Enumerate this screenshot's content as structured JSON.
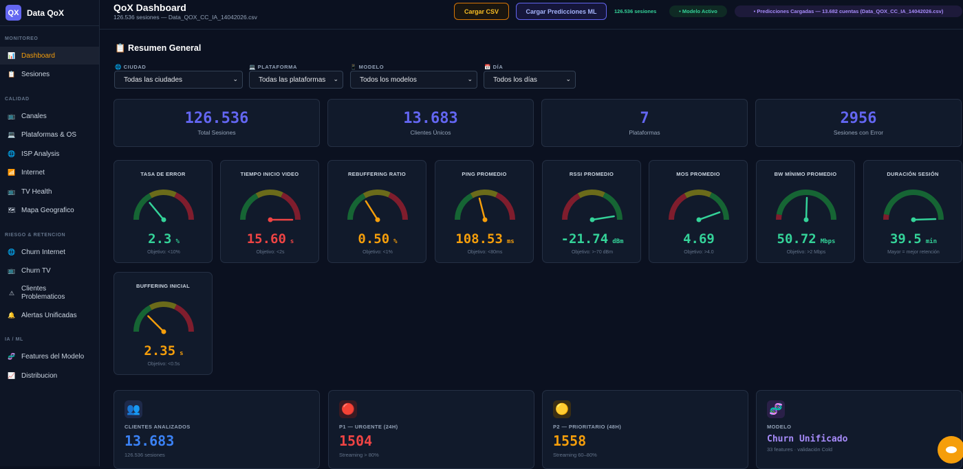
{
  "sidebar": {
    "logo": "QX",
    "brand": "Data QoX",
    "sections": {
      "monitoreo": "MONITOREO",
      "calidad": "CALIDAD",
      "riesgo": "RIESGO & RETENCION",
      "ia": "IA / ML"
    },
    "items": [
      {
        "label": "Dashboard",
        "icon": "📊"
      },
      {
        "label": "Sesiones",
        "icon": "📋"
      },
      {
        "label": "Canales",
        "icon": "📺"
      },
      {
        "label": "Plataformas & OS",
        "icon": "💻"
      },
      {
        "label": "ISP Analysis",
        "icon": "🌐"
      },
      {
        "label": "Internet",
        "icon": "📶"
      },
      {
        "label": "TV Health",
        "icon": "📺"
      },
      {
        "label": "Mapa Geografico",
        "icon": "🗺"
      },
      {
        "label": "Churn Internet",
        "icon": "🌐"
      },
      {
        "label": "Churn TV",
        "icon": "📺"
      },
      {
        "label": "Clientes Problematicos",
        "icon": "⚠"
      },
      {
        "label": "Alertas Unificadas",
        "icon": "🔔"
      },
      {
        "label": "Features del Modelo",
        "icon": "🧬"
      },
      {
        "label": "Distribucion",
        "icon": "📈"
      }
    ]
  },
  "header": {
    "title": "QoX Dashboard",
    "subtitle": "126.536 sesiones — Data_QOX_CC_IA_14042026.csv",
    "btn_csv": "Cargar CSV",
    "btn_ml": "Cargar Predicciones ML",
    "sessions": "126.536 sesiones",
    "model_status": "• Modelo Activo",
    "predictions": "• Predicciones Cargadas — 13.682 cuentas (Data_QOX_CC_IA_14042026.csv)"
  },
  "summary": {
    "title": "📋 Resumen General"
  },
  "filters": [
    {
      "label": "CIUDAD",
      "icon": "🌐",
      "value": "Todas las ciudades"
    },
    {
      "label": "PLATAFORMA",
      "icon": "💻",
      "value": "Todas las plataformas"
    },
    {
      "label": "MODELO",
      "icon": "📱",
      "value": "Todos los modelos"
    },
    {
      "label": "DÍA",
      "icon": "📅",
      "value": "Todos los días"
    }
  ],
  "kpis": [
    {
      "value": "126.536",
      "label": "Total Sesiones"
    },
    {
      "value": "13.683",
      "label": "Clientes Únicos"
    },
    {
      "value": "7",
      "label": "Plataformas"
    },
    {
      "value": "2956",
      "label": "Sesiones con Error"
    }
  ],
  "gauges": [
    {
      "title": "TASA DE ERROR",
      "value": "2.3",
      "unit": "%",
      "note": "Objetivo: <10%",
      "level": 0.28,
      "color": "#34d399",
      "arc": "gyr"
    },
    {
      "title": "TIEMPO INICIO VIDEO",
      "value": "15.60",
      "unit": "s",
      "note": "Objetivo: <2s",
      "level": 1.0,
      "color": "#ef4444",
      "arc": "gyr"
    },
    {
      "title": "REBUFFERING RATIO",
      "value": "0.50",
      "unit": "%",
      "note": "Objetivo: <1%",
      "level": 0.32,
      "color": "#f59e0b",
      "arc": "gyr"
    },
    {
      "title": "PING PROMEDIO",
      "value": "108.53",
      "unit": "ms",
      "note": "Objetivo: <80ms",
      "level": 0.42,
      "color": "#f59e0b",
      "arc": "gyr"
    },
    {
      "title": "RSSI PROMEDIO",
      "value": "-21.74",
      "unit": "dBm",
      "note": "Objetivo: >-70 dBm",
      "level": 0.95,
      "color": "#34d399",
      "arc": "ryg"
    },
    {
      "title": "MOS PROMEDIO",
      "value": "4.69",
      "unit": "",
      "note": "Objetivo: >4.0",
      "level": 0.89,
      "color": "#34d399",
      "arc": "ryg"
    },
    {
      "title": "BW MÍNIMO PROMEDIO",
      "value": "50.72",
      "unit": "Mbps",
      "note": "Objetivo: >2 Mbps",
      "level": 0.51,
      "color": "#34d399",
      "arc": "rg"
    },
    {
      "title": "DURACIÓN SESIÓN",
      "value": "39.5",
      "unit": "min",
      "note": "Mayor = mejor retención",
      "level": 0.99,
      "color": "#34d399",
      "arc": "rg"
    },
    {
      "title": "BUFFERING INICIAL",
      "value": "2.35",
      "unit": "s",
      "note": "Objetivo: <0.5s",
      "level": 0.25,
      "color": "#f59e0b",
      "arc": "gyr"
    }
  ],
  "bottom_cards": [
    {
      "label": "CLIENTES ANALIZADOS",
      "value": "13.683",
      "sub": "126.536 sesiones",
      "color": "#3b82f6",
      "icon": "👥",
      "icon_bg": "#1e2a4a"
    },
    {
      "label": "P1 — URGENTE (24H)",
      "value": "1504",
      "sub": "Streaming > 80%",
      "color": "#ef4444",
      "icon": "🔴",
      "icon_bg": "#3a1a22"
    },
    {
      "label": "P2 — PRIORITARIO (48H)",
      "value": "1558",
      "sub": "Streaming 60–80%",
      "color": "#f59e0b",
      "icon": "🟡",
      "icon_bg": "#3a2e14"
    },
    {
      "label": "MODELO",
      "value": "Churn Unificado",
      "sub": "33 features · validación Cold",
      "color": "#a78bfa",
      "icon": "🧬",
      "icon_bg": "#2a2048"
    }
  ]
}
